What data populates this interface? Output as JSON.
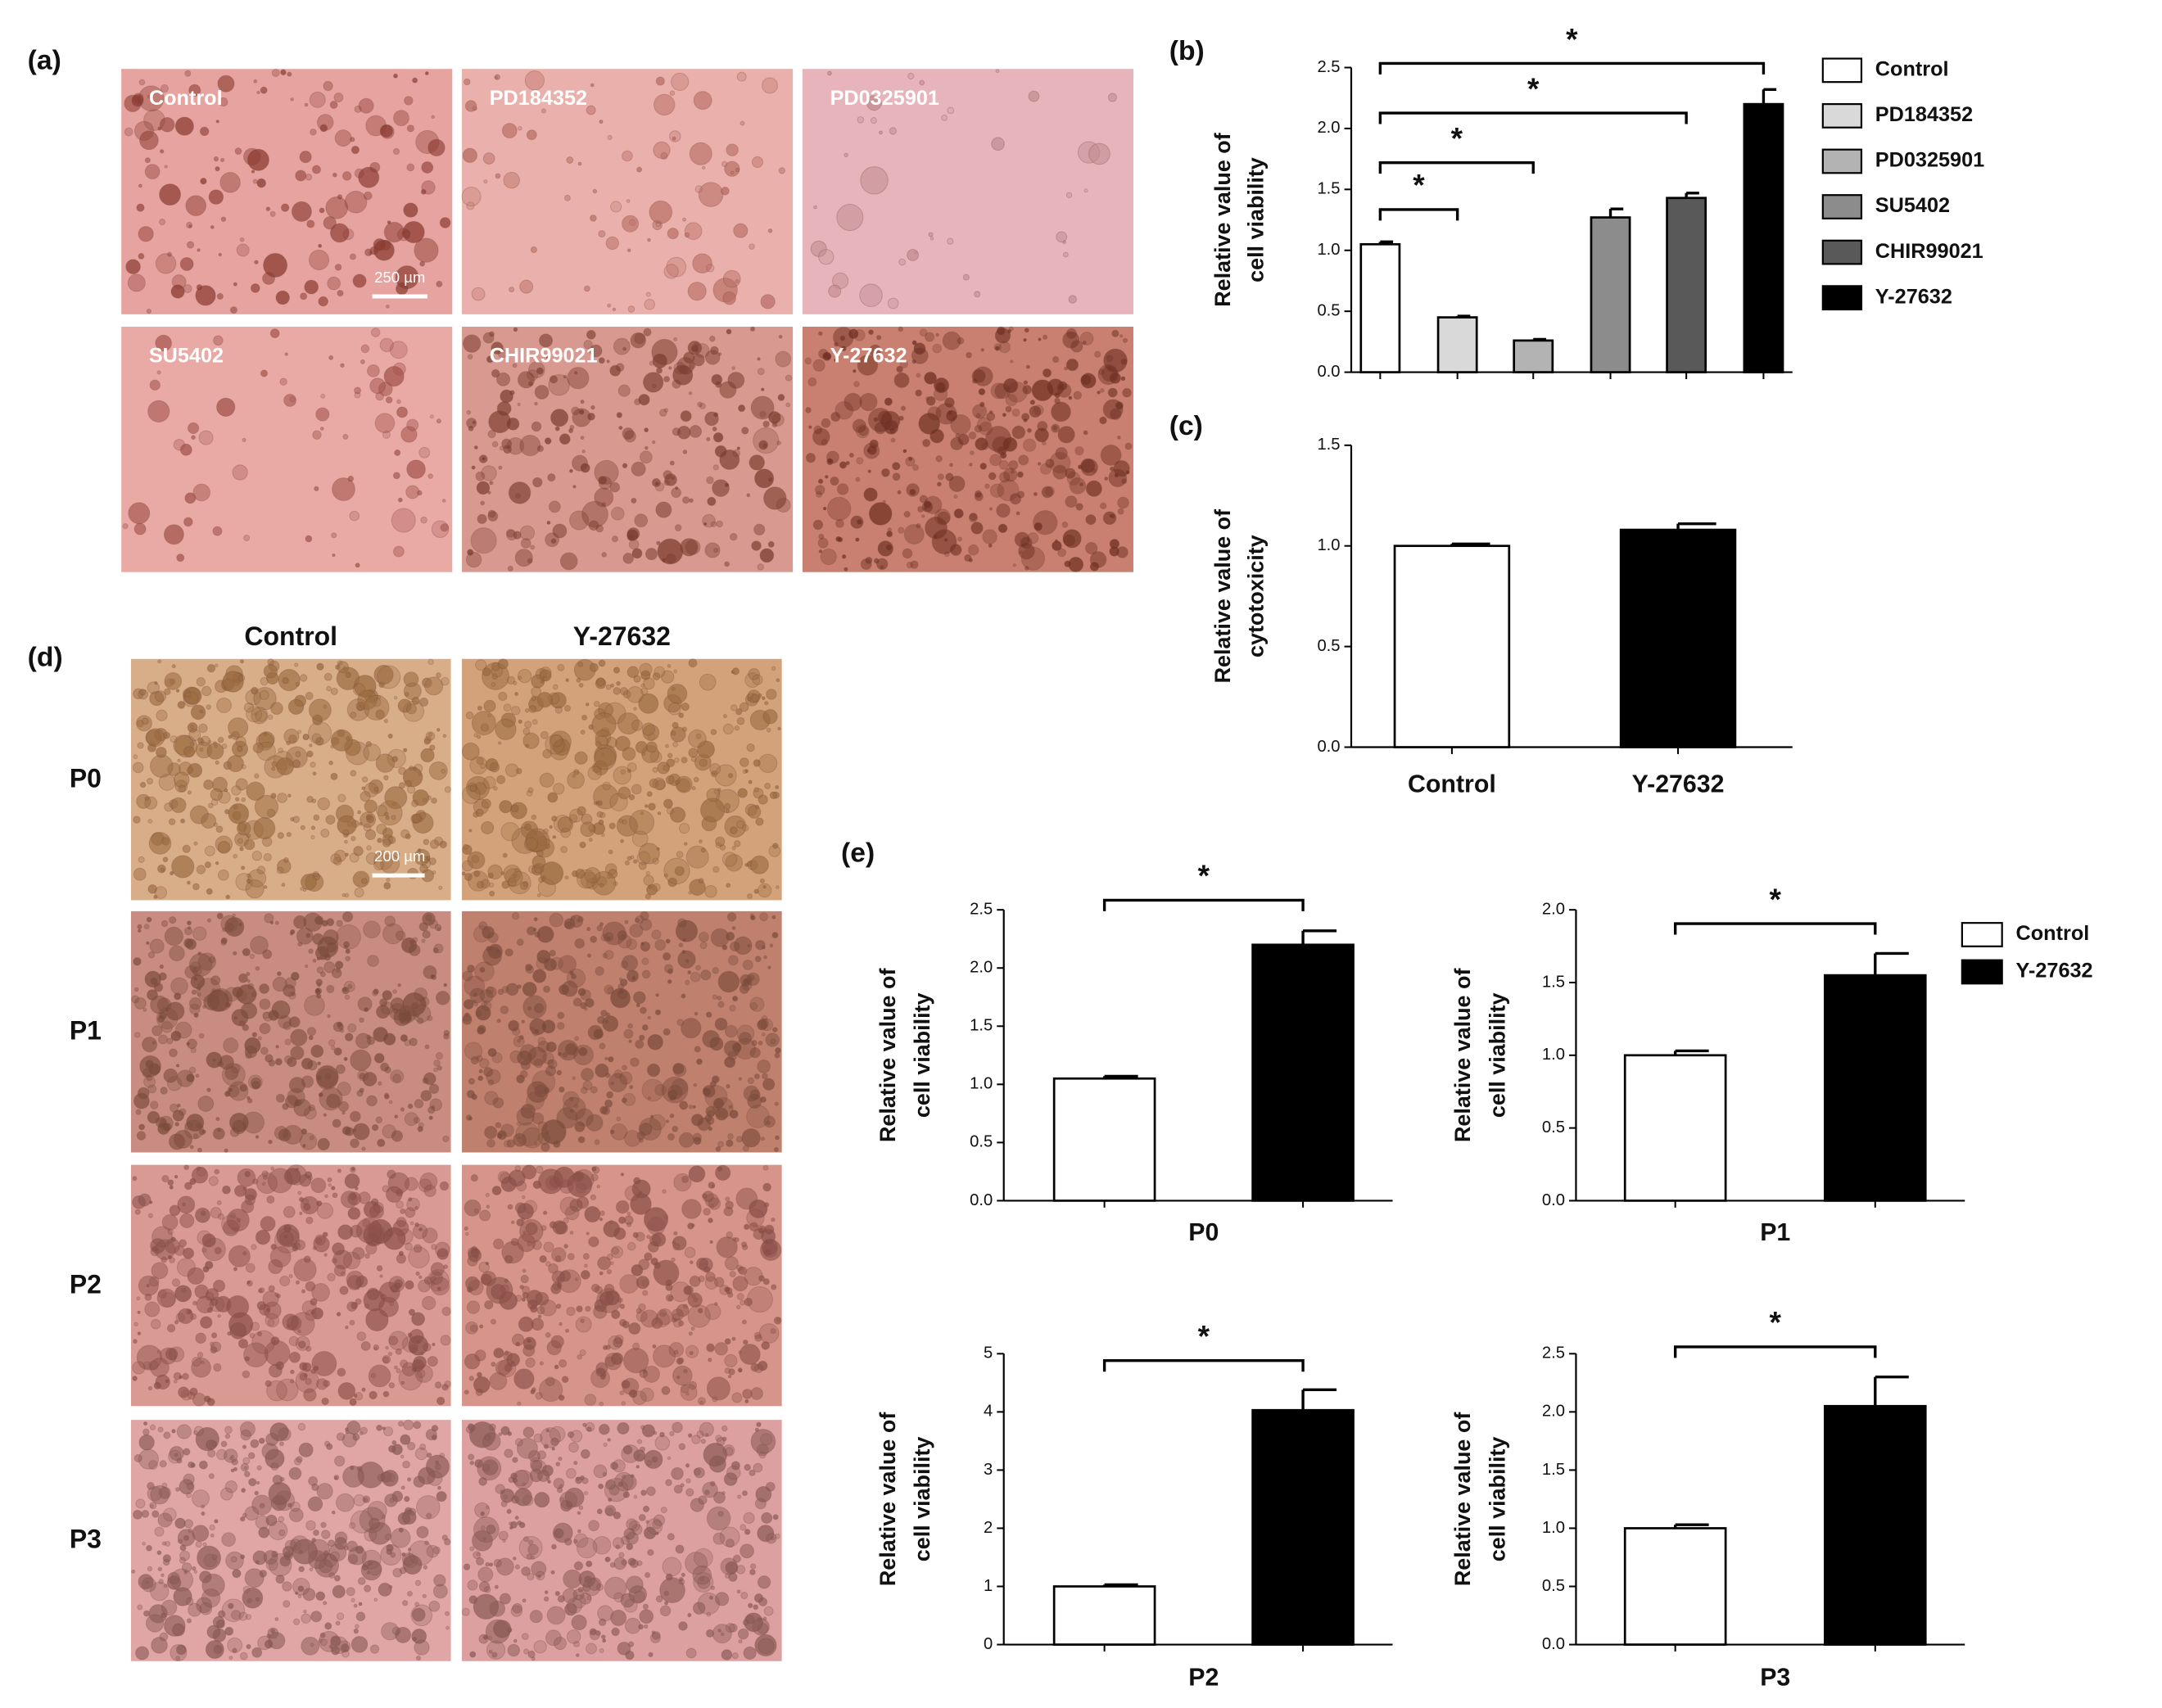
{
  "figure": {
    "panel_labels": [
      "(a)",
      "(b)",
      "(c)",
      "(d)",
      "(e)"
    ],
    "panel_a": {
      "labels": [
        "Control",
        "PD184352",
        "PD0325901",
        "SU5402",
        "CHIR99021",
        "Y-27632"
      ],
      "scale_bar": "250 µm"
    },
    "panel_d": {
      "columns": [
        "Control",
        "Y-27632"
      ],
      "rows": [
        "P0",
        "P1",
        "P2",
        "P3"
      ],
      "scale_bar": "200 µm"
    }
  },
  "chart_data": [
    {
      "type": "bar",
      "ylabel": [
        "Relative value of",
        "cell viability"
      ],
      "categories": [
        null
      ],
      "series": [
        {
          "name": "Control",
          "color": "#ffffff",
          "values": [
            1.05
          ],
          "errors": [
            0.02
          ]
        },
        {
          "name": "PD184352",
          "color": "#d9d9d9",
          "values": [
            0.45
          ],
          "errors": [
            0.01
          ]
        },
        {
          "name": "PD0325901",
          "color": "#b3b3b3",
          "values": [
            0.26
          ],
          "errors": [
            0.01
          ]
        },
        {
          "name": "SU5402",
          "color": "#8c8c8c",
          "values": [
            1.27
          ],
          "errors": [
            0.07
          ]
        },
        {
          "name": "CHIR99021",
          "color": "#595959",
          "values": [
            1.43
          ],
          "errors": [
            0.04
          ]
        },
        {
          "name": "Y-27632",
          "color": "#000000",
          "values": [
            2.2
          ],
          "errors": [
            0.12
          ]
        }
      ],
      "ylim": [
        0,
        2.5
      ],
      "yticks": [
        {
          "value": 0,
          "label": "0.0"
        },
        0.5,
        {
          "value": 1,
          "label": "1.0"
        },
        1.5,
        {
          "value": 2,
          "label": "2.0"
        },
        2.5
      ],
      "significance": [
        {
          "pair": [
            "Control",
            "PD184352"
          ],
          "label": "*"
        },
        {
          "pair": [
            "Control",
            "PD0325901"
          ],
          "label": "*"
        },
        {
          "pair": [
            "Control",
            "CHIR99021"
          ],
          "label": "*"
        },
        {
          "pair": [
            "Control",
            "Y-27632"
          ],
          "label": "*"
        }
      ],
      "legend": "right"
    },
    {
      "type": "bar",
      "ylabel": [
        "Relative value of",
        "cytotoxicity"
      ],
      "categories": [
        "Control",
        "Y-27632"
      ],
      "values": [
        1.0,
        1.08
      ],
      "errors": [
        0.01,
        0.03
      ],
      "colors": [
        "#ffffff",
        "#000000"
      ],
      "ylim": [
        0,
        1.5
      ],
      "yticks": [
        {
          "value": 0,
          "label": "0.0"
        },
        0.5,
        {
          "value": 1,
          "label": "1.0"
        },
        1.5
      ]
    },
    {
      "type": "bar",
      "ylabel": [
        "Relative value of",
        "cell viability"
      ],
      "categories": [
        "P0"
      ],
      "series": [
        {
          "name": "Control",
          "color": "#ffffff",
          "values": [
            1.05
          ],
          "errors": [
            0.02
          ]
        },
        {
          "name": "Y-27632",
          "color": "#000000",
          "values": [
            2.2
          ],
          "errors": [
            0.12
          ]
        }
      ],
      "ylim": [
        0,
        2.5
      ],
      "yticks": [
        {
          "value": 0,
          "label": "0.0"
        },
        0.5,
        {
          "value": 1,
          "label": "1.0"
        },
        1.5,
        {
          "value": 2,
          "label": "2.0"
        },
        2.5
      ],
      "significance": [
        {
          "pair": [
            "Control",
            "Y-27632"
          ],
          "label": "*"
        }
      ]
    },
    {
      "type": "bar",
      "ylabel": [
        "Relative value of",
        "cell viability"
      ],
      "categories": [
        "P1"
      ],
      "series": [
        {
          "name": "Control",
          "color": "#ffffff",
          "values": [
            1.0
          ],
          "errors": [
            0.03
          ]
        },
        {
          "name": "Y-27632",
          "color": "#000000",
          "values": [
            1.55
          ],
          "errors": [
            0.15
          ]
        }
      ],
      "ylim": [
        0,
        2
      ],
      "yticks": [
        {
          "value": 0,
          "label": "0.0"
        },
        0.5,
        {
          "value": 1,
          "label": "1.0"
        },
        1.5,
        {
          "value": 2,
          "label": "2.0"
        }
      ],
      "significance": [
        {
          "pair": [
            "Control",
            "Y-27632"
          ],
          "label": "*"
        }
      ],
      "legend": "right"
    },
    {
      "type": "bar",
      "ylabel": [
        "Relative value of",
        "cell viability"
      ],
      "categories": [
        "P2"
      ],
      "series": [
        {
          "name": "Control",
          "color": "#ffffff",
          "values": [
            1.0
          ],
          "errors": [
            0.03
          ]
        },
        {
          "name": "Y-27632",
          "color": "#000000",
          "values": [
            4.03
          ],
          "errors": [
            0.35
          ]
        }
      ],
      "ylim": [
        0,
        5
      ],
      "yticks": [
        0,
        1,
        2,
        3,
        4,
        5
      ],
      "significance": [
        {
          "pair": [
            "Control",
            "Y-27632"
          ],
          "label": "*"
        }
      ]
    },
    {
      "type": "bar",
      "ylabel": [
        "Relative value of",
        "cell viability"
      ],
      "categories": [
        "P3"
      ],
      "series": [
        {
          "name": "Control",
          "color": "#ffffff",
          "values": [
            1.0
          ],
          "errors": [
            0.03
          ]
        },
        {
          "name": "Y-27632",
          "color": "#000000",
          "values": [
            2.05
          ],
          "errors": [
            0.25
          ]
        }
      ],
      "ylim": [
        0,
        2.5
      ],
      "yticks": [
        {
          "value": 0,
          "label": "0.0"
        },
        0.5,
        {
          "value": 1,
          "label": "1.0"
        },
        1.5,
        {
          "value": 2,
          "label": "2.0"
        },
        2.5
      ],
      "significance": [
        {
          "pair": [
            "Control",
            "Y-27632"
          ],
          "label": "*"
        }
      ]
    }
  ]
}
